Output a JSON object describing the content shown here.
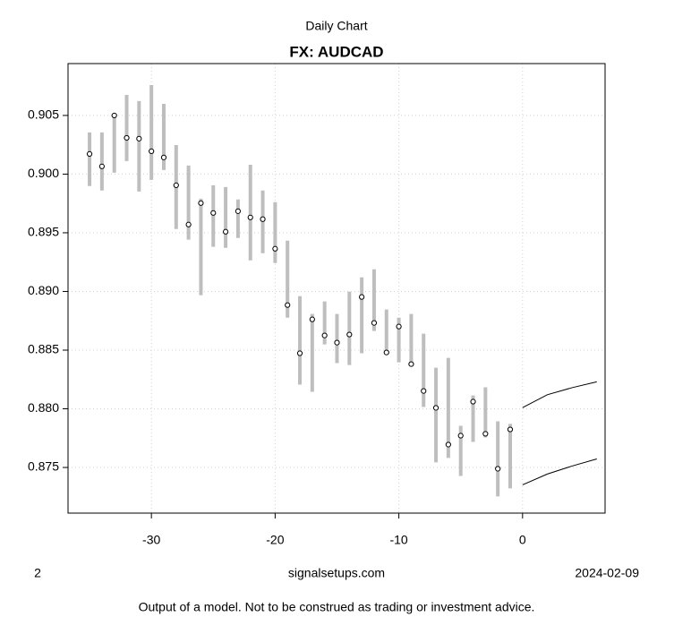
{
  "chart_data": {
    "type": "range",
    "subtitle": "Daily Chart",
    "title": "FX: AUDCAD",
    "x": [
      -35,
      -34,
      -33,
      -32,
      -31,
      -30,
      -29,
      -28,
      -27,
      -26,
      -25,
      -24,
      -23,
      -22,
      -21,
      -20,
      -19,
      -18,
      -17,
      -16,
      -15,
      -14,
      -13,
      -12,
      -11,
      -10,
      -9,
      -8,
      -7,
      -6,
      -5,
      -4,
      -3,
      -2,
      -1
    ],
    "close": [
      0.90172,
      0.90066,
      0.905,
      0.90309,
      0.90302,
      0.90195,
      0.90142,
      0.89905,
      0.8957,
      0.89753,
      0.89669,
      0.89509,
      0.89684,
      0.89631,
      0.89616,
      0.89364,
      0.88884,
      0.88473,
      0.88762,
      0.88625,
      0.88564,
      0.88633,
      0.88953,
      0.88732,
      0.8848,
      0.88701,
      0.88381,
      0.88152,
      0.88008,
      0.87695,
      0.87771,
      0.88061,
      0.87787,
      0.87489,
      0.87824
    ],
    "high": [
      0.90355,
      0.90355,
      0.905,
      0.90675,
      0.90622,
      0.90759,
      0.90599,
      0.90248,
      0.90073,
      0.89791,
      0.89905,
      0.8989,
      0.89784,
      0.9008,
      0.8986,
      0.89761,
      0.89433,
      0.8896,
      0.88808,
      0.88915,
      0.88808,
      0.88998,
      0.8912,
      0.89189,
      0.88846,
      0.88777,
      0.88808,
      0.8864,
      0.8835,
      0.88434,
      0.87855,
      0.88114,
      0.88183,
      0.87893,
      0.87871
    ],
    "low": [
      0.89898,
      0.8986,
      0.90012,
      0.90111,
      0.89852,
      0.89951,
      0.90035,
      0.89532,
      0.89441,
      0.88968,
      0.8938,
      0.89372,
      0.89456,
      0.89265,
      0.89326,
      0.89242,
      0.88777,
      0.88206,
      0.88145,
      0.88549,
      0.88389,
      0.88373,
      0.88473,
      0.88663,
      0.88457,
      0.88396,
      0.88358,
      0.88015,
      0.87543,
      0.87581,
      0.87428,
      0.87718,
      0.87756,
      0.87253,
      0.87322
    ],
    "forecast": {
      "x": [
        0,
        2,
        4,
        6
      ],
      "upper": [
        0.8801,
        0.8812,
        0.8818,
        0.8823
      ],
      "lower": [
        0.87352,
        0.87444,
        0.87512,
        0.87573
      ]
    },
    "bar_color": "#bebebe",
    "line_color": "#000000",
    "xlim": [
      -36.74,
      6.67
    ],
    "ylim": [
      0.87111,
      0.90942
    ],
    "xticks": [
      -30,
      -20,
      -10,
      0
    ],
    "yticks": [
      0.875,
      {
        "value": 0.88,
        "label": "0.880"
      },
      0.885,
      {
        "value": 0.89,
        "label": "0.890"
      },
      0.895,
      {
        "value": 0.9,
        "label": "0.900"
      },
      0.905
    ],
    "grid": true,
    "footer_left": "2",
    "footer_center": "signalsetups.com",
    "footer_right": "2024-02-09",
    "disclaimer": "Output of a model. Not to be construed as trading or investment advice."
  }
}
